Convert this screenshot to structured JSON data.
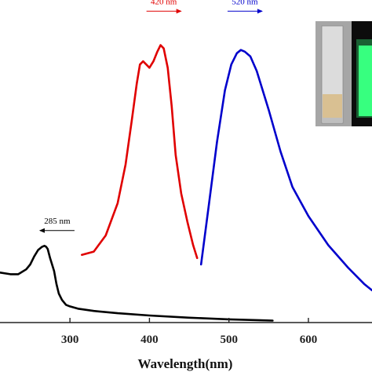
{
  "chart_data": {
    "type": "line",
    "xlabel": "Wavelength(nm)",
    "ylabel": "",
    "xlim": [
      212,
      680
    ],
    "ylim": [
      0,
      1.0
    ],
    "x_ticks": [
      300,
      400,
      500,
      600
    ],
    "x_tick_labels": [
      "300",
      "400",
      "500",
      "600"
    ],
    "grid": false,
    "series": [
      {
        "color": "#000000",
        "x": [
          212,
          225,
          235,
          245,
          250,
          255,
          260,
          265,
          268,
          270,
          272,
          275,
          280,
          283,
          286,
          290,
          295,
          300,
          310,
          330,
          360,
          400,
          450,
          500,
          540,
          555
        ],
        "y": [
          0.155,
          0.15,
          0.15,
          0.165,
          0.18,
          0.205,
          0.225,
          0.235,
          0.238,
          0.235,
          0.228,
          0.2,
          0.16,
          0.12,
          0.09,
          0.07,
          0.055,
          0.05,
          0.043,
          0.036,
          0.029,
          0.022,
          0.015,
          0.01,
          0.007,
          0.006
        ]
      },
      {
        "color": "#e00000",
        "x": [
          315,
          330,
          345,
          360,
          370,
          378,
          384,
          388,
          392,
          396,
          400,
          405,
          410,
          414,
          418,
          423,
          428,
          433,
          440,
          448,
          455,
          460
        ],
        "y": [
          0.21,
          0.22,
          0.27,
          0.37,
          0.49,
          0.63,
          0.74,
          0.8,
          0.81,
          0.8,
          0.79,
          0.81,
          0.84,
          0.86,
          0.85,
          0.79,
          0.67,
          0.52,
          0.4,
          0.31,
          0.24,
          0.2
        ]
      },
      {
        "color": "#0000cc",
        "x": [
          465,
          475,
          485,
          495,
          503,
          510,
          515,
          520,
          527,
          535,
          550,
          565,
          580,
          600,
          625,
          650,
          670,
          680
        ],
        "y": [
          0.18,
          0.37,
          0.56,
          0.72,
          0.8,
          0.835,
          0.845,
          0.84,
          0.825,
          0.78,
          0.66,
          0.53,
          0.42,
          0.33,
          0.24,
          0.17,
          0.12,
          0.1
        ]
      }
    ],
    "annotations": [
      {
        "text": "285 nm",
        "color": "#000000",
        "arrow": "left",
        "x": 284,
        "y": 0.295
      },
      {
        "text": "420 nm",
        "color": "#e00000",
        "arrow": "right",
        "x": 418,
        "y": 0.975
      },
      {
        "text": "520 nm",
        "color": "#0000cc",
        "arrow": "right",
        "x": 520,
        "y": 0.975
      }
    ]
  },
  "inset_photos": [
    {
      "name": "cuvette-daylight",
      "background": "#a6a6a6",
      "liquid_color": "#d9c092"
    },
    {
      "name": "cuvette-uv",
      "background": "#0c0c0c",
      "glow_color": "#37ff7f"
    }
  ]
}
